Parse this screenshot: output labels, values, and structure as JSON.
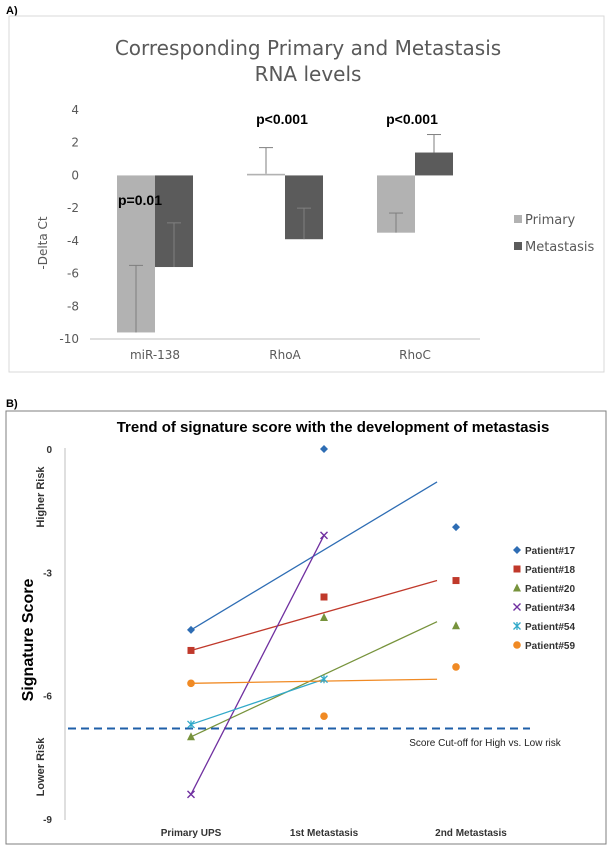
{
  "chart_data": [
    {
      "panel_label": "A)",
      "type": "bar",
      "title": "Corresponding Primary and Metastasis",
      "title_line2": "RNA levels",
      "xlabel": "",
      "ylabel": "-Delta Ct",
      "ylim": [
        -10,
        4
      ],
      "yticks": [
        4,
        2,
        0,
        -2,
        -4,
        -6,
        -8,
        -10
      ],
      "categories": [
        "miR-138",
        "RhoA",
        "RhoC"
      ],
      "series": [
        {
          "name": "Primary",
          "color": "#b2b2b2",
          "values": [
            -9.6,
            0.1,
            -3.5
          ],
          "error_upper": [
            -5.5,
            1.7,
            -2.3
          ]
        },
        {
          "name": "Metastasis",
          "color": "#5b5b5b",
          "values": [
            -5.6,
            -3.9,
            1.4
          ],
          "error_upper": [
            -2.9,
            -2.0,
            2.5
          ]
        }
      ],
      "annotations": [
        "p=0.01",
        "p<0.001",
        "p<0.001"
      ]
    },
    {
      "panel_label": "B)",
      "type": "scatter",
      "title": "Trend of signature score with the development of metastasis",
      "ylabel": "Signature Score",
      "ylim": [
        -9,
        0
      ],
      "yticks": [
        0,
        -3,
        -6,
        -9
      ],
      "categories": [
        "Primary UPS",
        "1st Metastasis",
        "2nd Metastasis"
      ],
      "higher_risk_label": "Higher Risk",
      "lower_risk_label": "Lower Risk",
      "cutoff_value": -6.8,
      "cutoff_label": "Score Cut-off for High vs. Low risk",
      "series": [
        {
          "name": "Patient#17",
          "color": "#2e6db4",
          "marker": "diamond",
          "values": [
            -4.4,
            0.0,
            -1.9
          ],
          "trend": [
            [
              1,
              -4.4
            ],
            [
              2.85,
              -0.8
            ]
          ]
        },
        {
          "name": "Patient#18",
          "color": "#c0392b",
          "marker": "square",
          "values": [
            -4.9,
            -3.6,
            -3.2
          ],
          "trend": [
            [
              1,
              -4.9
            ],
            [
              2.85,
              -3.2
            ]
          ]
        },
        {
          "name": "Patient#20",
          "color": "#77933c",
          "marker": "triangle",
          "values": [
            -7.0,
            -4.1,
            -4.3
          ],
          "trend": [
            [
              1,
              -7.0
            ],
            [
              2.85,
              -4.2
            ]
          ]
        },
        {
          "name": "Patient#34",
          "color": "#7030a0",
          "marker": "x",
          "values": [
            -8.4,
            -2.1,
            null
          ],
          "trend": [
            [
              1,
              -8.4
            ],
            [
              2.0,
              -2.1
            ]
          ]
        },
        {
          "name": "Patient#54",
          "color": "#31a9c9",
          "marker": "star",
          "values": [
            -6.7,
            -5.6,
            null
          ],
          "trend": [
            [
              1,
              -6.7
            ],
            [
              2.0,
              -5.6
            ]
          ]
        },
        {
          "name": "Patient#59",
          "color": "#f08a24",
          "marker": "circle",
          "values": [
            -5.7,
            -6.5,
            -5.3
          ],
          "trend": [
            [
              1,
              -5.7
            ],
            [
              2.85,
              -5.6
            ]
          ]
        }
      ]
    }
  ]
}
